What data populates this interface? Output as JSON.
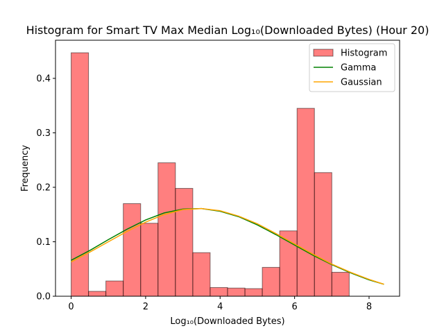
{
  "chart_data": {
    "type": "bar",
    "title": "Histogram for Smart TV Max Median Log₁₀(Downloaded Bytes) (Hour 20)",
    "xlabel": "Log₁₀(Downloaded Bytes)",
    "ylabel": "Frequency",
    "xlim": [
      -0.42,
      8.82
    ],
    "ylim": [
      0,
      0.47
    ],
    "xticks": [
      0,
      2,
      4,
      6,
      8
    ],
    "yticks": [
      0.0,
      0.1,
      0.2,
      0.3,
      0.4
    ],
    "ytick_labels": [
      "0.0",
      "0.1",
      "0.2",
      "0.3",
      "0.4"
    ],
    "grid": false,
    "legend_position": "top-right",
    "histogram": {
      "name": "Histogram",
      "color": "#ff0000",
      "bin_edges": [
        0,
        0.467,
        0.933,
        1.4,
        1.867,
        2.333,
        2.8,
        3.267,
        3.733,
        4.2,
        4.667,
        5.133,
        5.6,
        6.067,
        6.533,
        7.0,
        7.467,
        7.933,
        8.4
      ],
      "frequencies": [
        0.447,
        0.009,
        0.028,
        0.17,
        0.134,
        0.245,
        0.198,
        0.08,
        0.016,
        0.015,
        0.014,
        0.053,
        0.12,
        0.345,
        0.227,
        0.044,
        0.0,
        0.0
      ]
    },
    "series": [
      {
        "name": "Gamma",
        "color": "#008000",
        "x": [
          0,
          0.5,
          1.0,
          1.5,
          2.0,
          2.5,
          3.0,
          3.5,
          4.0,
          4.5,
          5.0,
          5.5,
          6.0,
          6.5,
          7.0,
          7.5,
          8.0,
          8.4
        ],
        "y": [
          0.066,
          0.084,
          0.104,
          0.123,
          0.14,
          0.153,
          0.16,
          0.161,
          0.156,
          0.146,
          0.131,
          0.113,
          0.094,
          0.075,
          0.058,
          0.043,
          0.03,
          0.022
        ]
      },
      {
        "name": "Gaussian",
        "color": "#ffa500",
        "x": [
          0,
          0.5,
          1.0,
          1.5,
          2.0,
          2.5,
          3.0,
          3.5,
          4.0,
          4.5,
          5.0,
          5.5,
          6.0,
          6.5,
          7.0,
          7.5,
          8.0,
          8.4
        ],
        "y": [
          0.063,
          0.081,
          0.1,
          0.119,
          0.136,
          0.15,
          0.159,
          0.161,
          0.157,
          0.147,
          0.133,
          0.115,
          0.096,
          0.077,
          0.059,
          0.044,
          0.031,
          0.022
        ]
      }
    ]
  }
}
